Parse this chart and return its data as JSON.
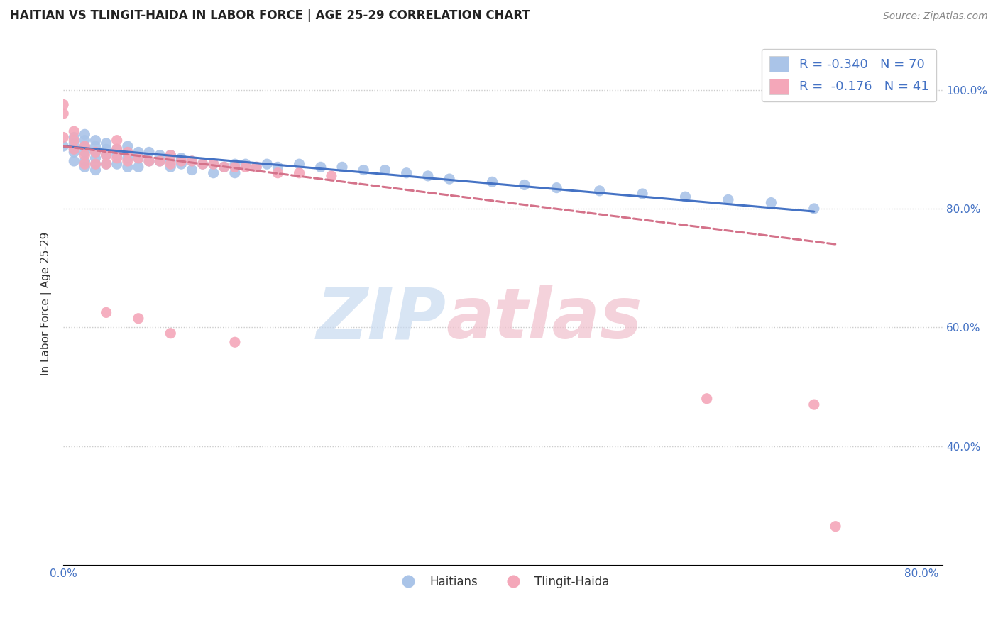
{
  "title": "HAITIAN VS TLINGIT-HAIDA IN LABOR FORCE | AGE 25-29 CORRELATION CHART",
  "source_text": "Source: ZipAtlas.com",
  "ylabel": "In Labor Force | Age 25-29",
  "xlim": [
    0.0,
    0.82
  ],
  "ylim": [
    0.2,
    1.08
  ],
  "xticks": [
    0.0,
    0.1,
    0.2,
    0.3,
    0.4,
    0.5,
    0.6,
    0.7,
    0.8
  ],
  "xticklabels": [
    "0.0%",
    "",
    "",
    "",
    "",
    "",
    "",
    "",
    "80.0%"
  ],
  "right_yticks": [
    0.4,
    0.6,
    0.8,
    1.0
  ],
  "right_yticklabels": [
    "40.0%",
    "60.0%",
    "80.0%",
    "100.0%"
  ],
  "legend_r_haitian": "-0.340",
  "legend_n_haitian": "70",
  "legend_r_tlingit": "-0.176",
  "legend_n_tlingit": "41",
  "haitian_color": "#aac4e8",
  "tlingit_color": "#f4a7b9",
  "haitian_line_color": "#4472c4",
  "tlingit_line_color": "#d4728a",
  "haitian_scatter_x": [
    0.0,
    0.01,
    0.01,
    0.01,
    0.01,
    0.01,
    0.02,
    0.02,
    0.02,
    0.02,
    0.02,
    0.02,
    0.03,
    0.03,
    0.03,
    0.03,
    0.03,
    0.03,
    0.04,
    0.04,
    0.04,
    0.04,
    0.05,
    0.05,
    0.05,
    0.06,
    0.06,
    0.06,
    0.06,
    0.07,
    0.07,
    0.07,
    0.08,
    0.08,
    0.09,
    0.09,
    0.1,
    0.1,
    0.1,
    0.11,
    0.11,
    0.12,
    0.12,
    0.13,
    0.14,
    0.14,
    0.15,
    0.16,
    0.16,
    0.17,
    0.18,
    0.19,
    0.2,
    0.22,
    0.24,
    0.26,
    0.28,
    0.3,
    0.32,
    0.34,
    0.36,
    0.4,
    0.43,
    0.46,
    0.5,
    0.54,
    0.58,
    0.62,
    0.66,
    0.7
  ],
  "haitian_scatter_y": [
    0.905,
    0.9,
    0.91,
    0.92,
    0.88,
    0.895,
    0.88,
    0.895,
    0.905,
    0.915,
    0.925,
    0.87,
    0.885,
    0.895,
    0.905,
    0.915,
    0.875,
    0.865,
    0.89,
    0.9,
    0.91,
    0.875,
    0.89,
    0.9,
    0.875,
    0.885,
    0.895,
    0.905,
    0.87,
    0.885,
    0.895,
    0.87,
    0.88,
    0.895,
    0.88,
    0.89,
    0.88,
    0.89,
    0.87,
    0.885,
    0.875,
    0.88,
    0.865,
    0.875,
    0.875,
    0.86,
    0.87,
    0.875,
    0.86,
    0.875,
    0.87,
    0.875,
    0.87,
    0.875,
    0.87,
    0.87,
    0.865,
    0.865,
    0.86,
    0.855,
    0.85,
    0.845,
    0.84,
    0.835,
    0.83,
    0.825,
    0.82,
    0.815,
    0.81,
    0.8
  ],
  "tlingit_scatter_x": [
    0.0,
    0.0,
    0.0,
    0.01,
    0.01,
    0.01,
    0.02,
    0.02,
    0.02,
    0.03,
    0.03,
    0.04,
    0.04,
    0.05,
    0.05,
    0.05,
    0.06,
    0.06,
    0.07,
    0.08,
    0.09,
    0.1,
    0.1,
    0.11,
    0.12,
    0.13,
    0.14,
    0.15,
    0.16,
    0.17,
    0.18,
    0.2,
    0.22,
    0.25,
    0.04,
    0.07,
    0.1,
    0.16,
    0.6,
    0.7,
    0.72
  ],
  "tlingit_scatter_y": [
    0.92,
    0.96,
    0.975,
    0.9,
    0.915,
    0.93,
    0.89,
    0.905,
    0.875,
    0.895,
    0.875,
    0.89,
    0.875,
    0.885,
    0.9,
    0.915,
    0.88,
    0.895,
    0.885,
    0.88,
    0.88,
    0.875,
    0.89,
    0.88,
    0.88,
    0.875,
    0.875,
    0.87,
    0.87,
    0.87,
    0.87,
    0.86,
    0.86,
    0.855,
    0.625,
    0.615,
    0.59,
    0.575,
    0.48,
    0.47,
    0.265
  ]
}
